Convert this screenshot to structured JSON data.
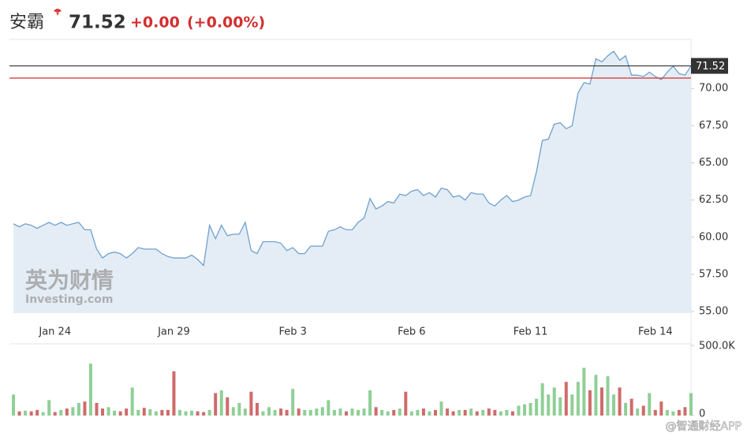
{
  "header": {
    "name": "安霸",
    "price": "71.52",
    "change": "+0.00",
    "change_pct": "(+0.00%)"
  },
  "watermark": "英为财情",
  "watermark_sub": "Investing.com",
  "credit": "@智通财经APP",
  "chart_data": [
    {
      "type": "line",
      "color": "#6fa0cf",
      "fill": "#e4edf5",
      "categories": [
        null,
        null,
        null,
        null,
        null,
        null,
        null,
        "Jan 24",
        null,
        null,
        null,
        null,
        null,
        null,
        null,
        null,
        null,
        null,
        null,
        null,
        null,
        null,
        null,
        null,
        null,
        null,
        null,
        "Jan 29",
        null,
        null,
        null,
        null,
        null,
        null,
        null,
        null,
        null,
        null,
        null,
        null,
        null,
        null,
        null,
        null,
        null,
        null,
        null,
        "Feb 3",
        null,
        null,
        null,
        null,
        null,
        null,
        null,
        null,
        null,
        null,
        null,
        null,
        null,
        null,
        null,
        null,
        null,
        null,
        null,
        "Feb 6",
        null,
        null,
        null,
        null,
        null,
        null,
        null,
        null,
        null,
        null,
        null,
        null,
        null,
        null,
        null,
        null,
        null,
        null,
        null,
        "Feb 11",
        null,
        null,
        null,
        null,
        null,
        null,
        null,
        null,
        null,
        null,
        null,
        null,
        null,
        null,
        null,
        null,
        null,
        null,
        null,
        null,
        "Feb 14",
        null,
        null,
        null,
        null,
        null,
        null
      ],
      "values": [
        60.9,
        60.7,
        60.9,
        60.8,
        60.6,
        60.8,
        61.0,
        60.8,
        61.0,
        60.8,
        60.9,
        61.0,
        60.5,
        60.5,
        59.2,
        58.6,
        58.9,
        59.0,
        58.9,
        58.6,
        58.9,
        59.3,
        59.2,
        59.2,
        59.2,
        58.9,
        58.7,
        58.6,
        58.6,
        58.6,
        58.8,
        58.5,
        58.1,
        60.8,
        59.9,
        60.8,
        60.1,
        60.2,
        60.2,
        61.0,
        59.1,
        58.9,
        59.7,
        59.7,
        59.7,
        59.6,
        59.1,
        59.3,
        58.9,
        58.9,
        59.4,
        59.4,
        59.4,
        60.4,
        60.5,
        60.7,
        60.5,
        60.5,
        61.0,
        61.3,
        62.6,
        61.9,
        62.1,
        62.4,
        62.3,
        62.9,
        62.8,
        63.1,
        63.2,
        62.8,
        63.0,
        62.7,
        63.3,
        63.2,
        62.7,
        62.8,
        62.5,
        63.0,
        62.9,
        62.9,
        62.3,
        62.1,
        62.5,
        62.8,
        62.4,
        62.5,
        62.7,
        62.8,
        64.4,
        66.5,
        66.6,
        67.6,
        67.7,
        67.3,
        67.5,
        69.7,
        70.4,
        70.3,
        72.0,
        71.8,
        72.2,
        72.5,
        71.9,
        72.2,
        70.9,
        70.9,
        70.8,
        71.1,
        70.8,
        70.6,
        71.1,
        71.5,
        71.0,
        70.9,
        71.52
      ],
      "ylim": [
        54.9,
        73.3
      ],
      "yticks": [
        {
          "value": 55,
          "label": "55.00"
        },
        {
          "value": 57.5,
          "label": "57.50"
        },
        {
          "value": 60,
          "label": "60.00"
        },
        {
          "value": 62.5,
          "label": "62.50"
        },
        {
          "value": 65,
          "label": "65.00"
        },
        {
          "value": 67.5,
          "label": "67.50"
        },
        {
          "value": 70,
          "label": "70.00"
        }
      ],
      "reference_lines": [
        {
          "value": 71.52,
          "color": "#333333"
        },
        {
          "value": 70.7,
          "color": "#d32f2f"
        }
      ]
    },
    {
      "type": "bar",
      "up_color": "#8fcf96",
      "down_color": "#cf6b6b",
      "values": [
        150000,
        30000,
        35000,
        30000,
        40000,
        25000,
        110000,
        25000,
        40000,
        50000,
        60000,
        90000,
        100000,
        370000,
        90000,
        50000,
        60000,
        35000,
        30000,
        50000,
        200000,
        40000,
        55000,
        45000,
        30000,
        40000,
        40000,
        315000,
        40000,
        30000,
        35000,
        30000,
        25000,
        40000,
        160000,
        180000,
        130000,
        60000,
        90000,
        50000,
        170000,
        90000,
        30000,
        60000,
        40000,
        50000,
        40000,
        190000,
        50000,
        40000,
        40000,
        50000,
        60000,
        110000,
        40000,
        50000,
        30000,
        50000,
        40000,
        50000,
        180000,
        60000,
        40000,
        30000,
        40000,
        50000,
        170000,
        30000,
        40000,
        50000,
        30000,
        40000,
        100000,
        50000,
        30000,
        40000,
        40000,
        50000,
        30000,
        40000,
        50000,
        40000,
        30000,
        40000,
        30000,
        70000,
        80000,
        90000,
        120000,
        230000,
        150000,
        200000,
        130000,
        240000,
        150000,
        240000,
        340000,
        180000,
        290000,
        200000,
        280000,
        150000,
        200000,
        90000,
        120000,
        50000,
        70000,
        160000,
        40000,
        100000,
        40000,
        30000,
        40000,
        60000,
        160000
      ],
      "ylim": [
        0,
        500000
      ],
      "yticks": [
        0,
        {
          "value": 500000,
          "label": "500.0K"
        }
      ]
    }
  ]
}
